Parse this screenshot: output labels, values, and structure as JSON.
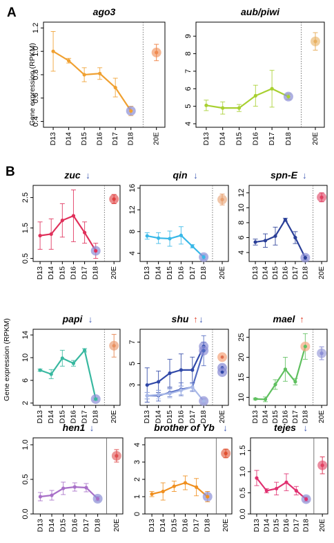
{
  "figure": {
    "panel_a_label": "A",
    "panel_b_label": "B",
    "ylabel_a": "Gene expression (RPKM)",
    "ylabel_b": "Gene expression (RPKM)"
  },
  "colors": {
    "down_arrow": "#3a55b0",
    "up_arrow": "#e0402a",
    "highlight_blue": "#8c8fd6",
    "highlight_orange": "#f5a882"
  },
  "chart_data": [
    {
      "type": "line",
      "title": "ago3",
      "arrow": "",
      "categories": [
        "D13",
        "D14",
        "D15",
        "D16",
        "D17",
        "D18"
      ],
      "ylim": [
        0.35,
        1.25
      ],
      "yticks": [
        0.4,
        0.6,
        0.8,
        1.0,
        1.2
      ],
      "ytick_labels": [
        "0.4",
        "0.6",
        "0.8",
        "1.0",
        "1.2"
      ],
      "color": "#f0a030",
      "series": [
        {
          "values": [
            1.0,
            0.92,
            0.8,
            0.81,
            0.69,
            0.49
          ],
          "err": [
            0.17,
            0.02,
            0.06,
            0.05,
            0.08,
            0.04
          ]
        }
      ],
      "highlight_last": "#8c8fd6",
      "outlier": {
        "label": "20E",
        "value": 0.99,
        "err": 0.07,
        "color": "#f08a50"
      },
      "sep_style": "dotted"
    },
    {
      "type": "line",
      "title": "aub/piwi",
      "arrow": "",
      "categories": [
        "D13",
        "D14",
        "D15",
        "D16",
        "D17",
        "D18"
      ],
      "ylim": [
        3.8,
        9.8
      ],
      "yticks": [
        4,
        5,
        6,
        7,
        8,
        9
      ],
      "ytick_labels": [
        "4",
        "5",
        "6",
        "7",
        "8",
        "9"
      ],
      "color": "#a8d030",
      "series": [
        {
          "values": [
            5.05,
            4.9,
            4.9,
            5.6,
            6.0,
            5.55
          ],
          "err": [
            0.3,
            0.35,
            0.2,
            0.6,
            1.05,
            0.15
          ]
        }
      ],
      "highlight_last": "#8c8fd6",
      "outlier": {
        "label": "20E",
        "value": 8.7,
        "err": 0.5,
        "color": "#e8b060"
      },
      "sep_style": "dotted"
    },
    {
      "type": "line",
      "title": "zuc",
      "arrow": "↓",
      "categories": [
        "D13",
        "D14",
        "D15",
        "D16",
        "D17",
        "D18"
      ],
      "ylim": [
        0.4,
        2.9
      ],
      "yticks": [
        0.5,
        1.5,
        2.5
      ],
      "ytick_labels": [
        "0.5",
        "1.5",
        "2.5"
      ],
      "color": "#e0305a",
      "series": [
        {
          "values": [
            1.25,
            1.3,
            1.75,
            1.9,
            1.35,
            0.75
          ],
          "err": [
            0.45,
            0.5,
            0.55,
            0.85,
            0.35,
            0.25
          ]
        }
      ],
      "highlight_last": "#8c8fd6",
      "outlier": {
        "label": "20E",
        "value": 2.45,
        "err": 0.15,
        "color": "#e04040"
      },
      "sep_style": "dotted"
    },
    {
      "type": "line",
      "title": "qin",
      "arrow": "↓",
      "categories": [
        "D13",
        "D14",
        "D15",
        "D16",
        "D17",
        "D18"
      ],
      "ylim": [
        2.5,
        16.5
      ],
      "yticks": [
        4,
        8,
        12,
        16
      ],
      "ytick_labels": [
        "4",
        "8",
        "12",
        "16"
      ],
      "color": "#38b8e8",
      "series": [
        {
          "values": [
            7.2,
            6.8,
            6.7,
            7.3,
            5.3,
            3.3
          ],
          "err": [
            0.6,
            1.0,
            1.4,
            1.6,
            0.3,
            0.4
          ]
        }
      ],
      "highlight_last": "#8c8fd6",
      "outlier": {
        "label": "20E",
        "value": 13.9,
        "err": 1.0,
        "color": "#e8a070"
      },
      "sep_style": "dotted"
    },
    {
      "type": "line",
      "title": "spn-E",
      "arrow": "↓",
      "categories": [
        "D13",
        "D14",
        "D15",
        "D16",
        "D17",
        "D18"
      ],
      "ylim": [
        2.8,
        13
      ],
      "yticks": [
        4,
        6,
        8,
        10,
        12
      ],
      "ytick_labels": [
        "4",
        "6",
        "8",
        "10",
        "12"
      ],
      "color": "#2a3f98",
      "series": [
        {
          "values": [
            5.4,
            5.6,
            6.2,
            8.4,
            6.0,
            3.3
          ],
          "err": [
            0.4,
            0.9,
            1.2,
            0.2,
            0.8,
            0.3
          ]
        }
      ],
      "highlight_last": "#8c8fd6",
      "outlier": {
        "label": "20E",
        "value": 11.4,
        "err": 0.6,
        "color": "#e04060"
      },
      "sep_style": "dotted"
    },
    {
      "type": "line",
      "title": "papi",
      "arrow": "↓",
      "categories": [
        "D13",
        "D14",
        "D15",
        "D16",
        "D17",
        "D18"
      ],
      "ylim": [
        1.6,
        15
      ],
      "yticks": [
        2,
        6,
        10,
        14
      ],
      "ytick_labels": [
        "2",
        "6",
        "10",
        "14"
      ],
      "color": "#38b8a0",
      "series": [
        {
          "values": [
            7.8,
            7.1,
            9.9,
            9.0,
            11.3,
            2.7
          ],
          "err": [
            0.2,
            0.8,
            1.4,
            0.5,
            0.3,
            0.2
          ]
        }
      ],
      "highlight_last": "#8c8fd6",
      "outlier": {
        "label": "20E",
        "value": 12.1,
        "err": 2.0,
        "color": "#e89060"
      },
      "sep_style": "dotted"
    },
    {
      "type": "line",
      "title": "shu",
      "arrow": "↑↓",
      "categories": [
        "D13",
        "D14",
        "D15",
        "D16",
        "D17",
        "D18"
      ],
      "ylim": [
        1.1,
        8.2
      ],
      "yticks": [
        3,
        5,
        7
      ],
      "ytick_labels": [
        "3",
        "5",
        "7"
      ],
      "color": "#3048a8",
      "series": [
        {
          "values": [
            3.0,
            3.3,
            4.1,
            4.4,
            4.4,
            6.6
          ],
          "err": [
            1.6,
            1.0,
            1.3,
            1.5,
            1.2,
            0.4
          ],
          "color": "#3048a8"
        },
        {
          "values": [
            2.0,
            2.0,
            2.3,
            2.6,
            2.8,
            6.2
          ],
          "err": [
            0.3,
            0.5,
            0.4,
            0.6,
            0.4,
            1.4
          ],
          "color": "#5068c0"
        },
        {
          "values": [
            2.0,
            2.1,
            2.2,
            2.5,
            2.8,
            1.5
          ],
          "err": [
            0.3,
            0.4,
            0.4,
            0.4,
            0.3,
            0.2
          ],
          "color": "#a8b8e8"
        }
      ],
      "highlight_last": "#8c8fd6",
      "outlier_multi": [
        {
          "value": 5.6,
          "color": "#f5a882"
        },
        {
          "value": 4.6,
          "color": "#8c8fd6"
        },
        {
          "value": 4.2,
          "color": "#8c8fd6"
        }
      ],
      "outlier": {
        "label": "20E",
        "value": 5.6,
        "err": 0.3,
        "color": "#f5a882"
      },
      "sep_style": "dotted"
    },
    {
      "type": "line",
      "title": "mael",
      "arrow": "↑",
      "categories": [
        "D13",
        "D14",
        "D15",
        "D16",
        "D17",
        "D18"
      ],
      "ylim": [
        8,
        27
      ],
      "yticks": [
        10,
        15,
        20,
        25
      ],
      "ytick_labels": [
        "10",
        "15",
        "20",
        "25"
      ],
      "color": "#60c060",
      "series": [
        {
          "values": [
            9.6,
            9.5,
            13.2,
            17.0,
            13.9,
            22.7
          ],
          "err": [
            0.2,
            0.6,
            1.2,
            3.0,
            0.8,
            3.2
          ]
        }
      ],
      "highlight_last": "#f5a882",
      "outlier": {
        "label": "20E",
        "value": 21.0,
        "err": 1.6,
        "color": "#8c8fd6"
      },
      "sep_style": "dotted"
    },
    {
      "type": "line",
      "title": "hen1",
      "arrow": "↓",
      "categories": [
        "D13",
        "D14",
        "D15",
        "D16",
        "D17",
        "D18"
      ],
      "ylim": [
        0,
        1.1
      ],
      "yticks": [
        0.0,
        0.5,
        1.0
      ],
      "ytick_labels": [
        "0.0",
        "0.5",
        "1.0"
      ],
      "color": "#a870c8",
      "series": [
        {
          "values": [
            0.25,
            0.27,
            0.37,
            0.39,
            0.38,
            0.22
          ],
          "err": [
            0.06,
            0.07,
            0.09,
            0.06,
            0.06,
            0.03
          ]
        }
      ],
      "highlight_last": "#8c8fd6",
      "outlier": {
        "label": "20E",
        "value": 0.84,
        "err": 0.09,
        "color": "#e05050"
      },
      "sep_style": "solid"
    },
    {
      "type": "line",
      "title": "brother of Yb",
      "arrow": "↓",
      "categories": [
        "D13",
        "D14",
        "D15",
        "D16",
        "D17",
        "D18"
      ],
      "ylim": [
        0,
        4.4
      ],
      "yticks": [
        0,
        1,
        2,
        3,
        4
      ],
      "ytick_labels": [
        "0",
        "1",
        "2",
        "3",
        "4"
      ],
      "color": "#f09020",
      "series": [
        {
          "values": [
            1.15,
            1.3,
            1.6,
            1.8,
            1.55,
            1.0
          ],
          "err": [
            0.15,
            0.5,
            0.3,
            0.4,
            0.5,
            0.3
          ]
        }
      ],
      "highlight_last": "#8c8fd6",
      "outlier": {
        "label": "20E",
        "value": 3.5,
        "err": 0.25,
        "color": "#e05030"
      },
      "sep_style": "solid"
    },
    {
      "type": "line",
      "title": "tejes",
      "arrow": "↓",
      "categories": [
        "D13",
        "D14",
        "D15",
        "D16",
        "D17",
        "D18"
      ],
      "ylim": [
        0,
        1.8
      ],
      "yticks": [
        0.0,
        0.5,
        1.0,
        1.5
      ],
      "ytick_labels": [
        "0.0",
        "0.5",
        "1.0",
        "1.5"
      ],
      "color": "#e03070",
      "series": [
        {
          "values": [
            0.85,
            0.55,
            0.6,
            0.75,
            0.55,
            0.35
          ],
          "err": [
            0.18,
            0.05,
            0.15,
            0.2,
            0.1,
            0.05
          ]
        }
      ],
      "highlight_last": "#8c8fd6",
      "outlier": {
        "label": "20E",
        "value": 1.15,
        "err": 0.2,
        "color": "#e04060"
      },
      "sep_style": "solid"
    }
  ]
}
